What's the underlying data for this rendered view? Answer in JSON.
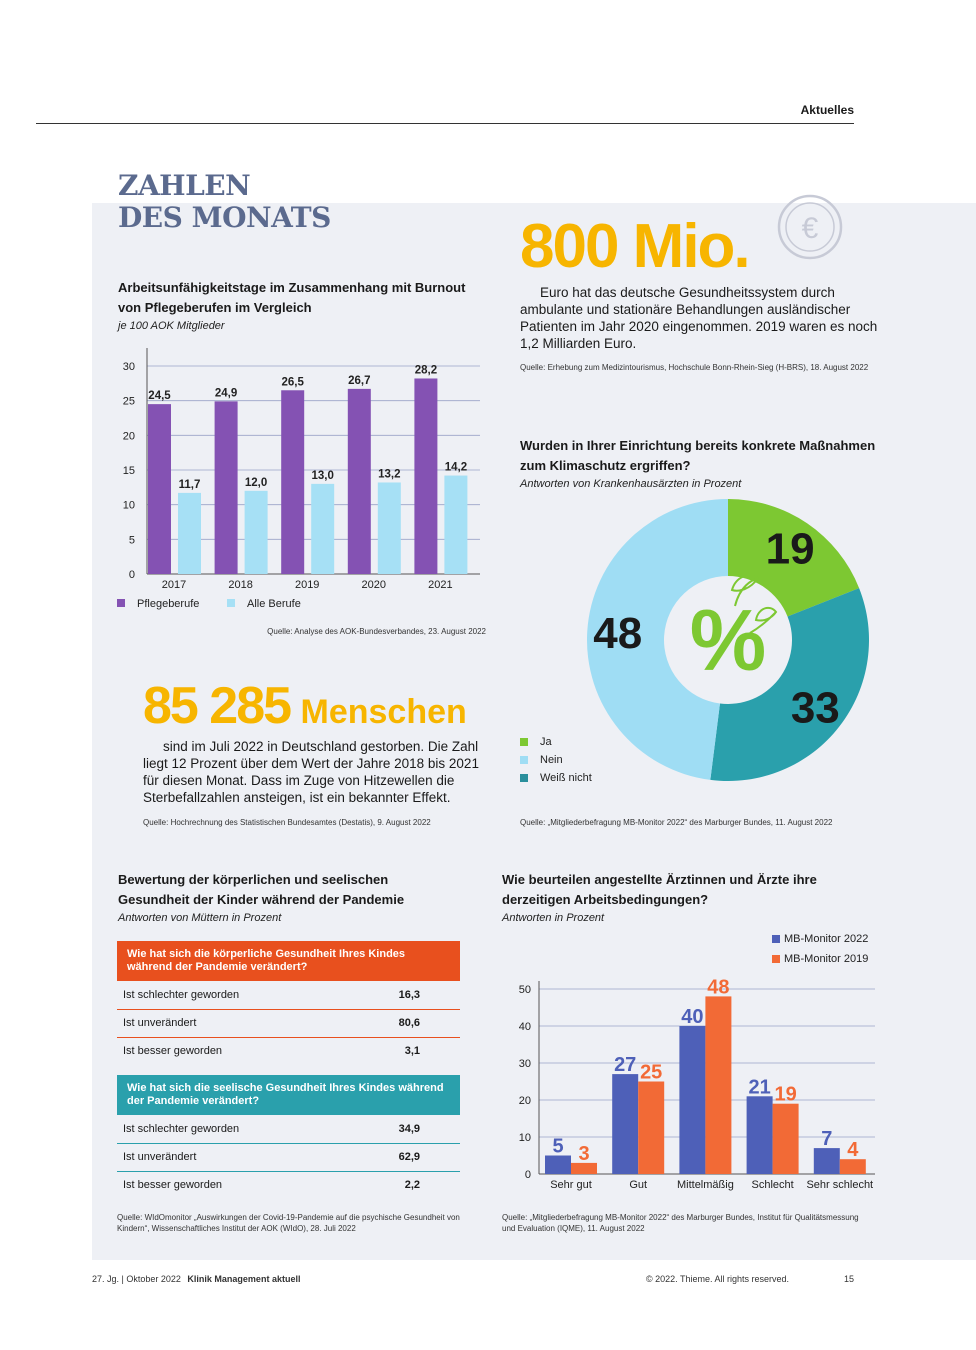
{
  "header": {
    "section": "Aktuelles"
  },
  "title": {
    "line1": "ZAHLEN",
    "line2": "DES MONATS"
  },
  "money": {
    "number": "800 Mio.",
    "icon": "euro-coin-icon",
    "text": "Euro hat das deutsche Gesundheitssystem durch ambulante und stationäre Behandlungen ausländischer Patienten im Jahr 2020 eingenommen. 2019 waren es noch 1,2 Milliarden Euro.",
    "source": "Quelle: Erhebung zum Medizintourismus, Hochschule Bonn-Rhein-Sieg (H-BRS), 18. August 2022"
  },
  "deaths": {
    "number": "85 285",
    "unit": "Menschen",
    "text": "sind im Juli 2022 in Deutschland gestorben. Die Zahl liegt 12 Prozent über dem Wert der Jahre 2018 bis 2021 für diesen Monat. Dass im Zuge von Hitzewellen die Sterbefallzahlen ansteigen, ist ein bekannter Effekt.",
    "source": "Quelle: Hochrechnung des Statistischen Bundesamtes (Destatis), 9. August 2022"
  },
  "table_section": {
    "title": "Bewertung der körperlichen und seelischen Gesundheit der Kinder während der Pandemie",
    "subtitle": "Antworten von Müttern in Prozent",
    "source": "Quelle: WIdOmonitor „Auswirkungen der Covid-19-Pandemie auf die psychische Gesundheit von Kindern“, Wissenschaftliches Institut der AOK (WIdO), 28. Juli 2022",
    "color_body": "#e8501e",
    "color_mind": "#2aa0ac"
  },
  "footer": {
    "left": "27. Jg.  |  Oktober 2022",
    "journal": "Klinik Management aktuell",
    "copyright": "© 2022. Thieme. All rights reserved.",
    "page": "15"
  },
  "chart_data": [
    {
      "type": "bar",
      "title": "Arbeitsunfähigkeitstage im Zusammenhang mit Burnout von Pflegeberufen im Vergleich",
      "subtitle": "je 100 AOK Mitglieder",
      "categories": [
        "2017",
        "2018",
        "2019",
        "2020",
        "2021"
      ],
      "series": [
        {
          "name": "Pflegeberufe",
          "values": [
            24.5,
            24.9,
            26.5,
            26.7,
            28.2
          ],
          "labels": [
            "24,5",
            "24,9",
            "26,5",
            "26,7",
            "28,2"
          ],
          "color": "#8452b3"
        },
        {
          "name": "Alle Berufe",
          "values": [
            11.7,
            12.0,
            13.0,
            13.2,
            14.2
          ],
          "labels": [
            "11,7",
            "12,0",
            "13,0",
            "13,2",
            "14,2"
          ],
          "color": "#a6e0f5"
        }
      ],
      "yticks": [
        "0",
        "5",
        "10",
        "15",
        "20",
        "25",
        "30"
      ],
      "ylim": [
        0,
        30
      ],
      "grid": true,
      "legend": "bottom-left",
      "source": "Quelle: Analyse des AOK-Bundesverbandes, 23. August 2022"
    },
    {
      "type": "pie",
      "title": "Wurden in Ihrer Einrichtung bereits konkrete Maßnahmen zum Klimaschutz ergriffen?",
      "subtitle": "Antworten von Krankenhausärzten in Prozent",
      "center_label": "%",
      "slices": [
        {
          "label": "Ja",
          "value": 19,
          "color": "#7dc832"
        },
        {
          "label": "Weiß nicht",
          "value": 33,
          "color": "#2aa0ac"
        },
        {
          "label": "Nein",
          "value": 48,
          "color": "#9fddf4"
        }
      ],
      "legend": [
        "Ja",
        "Nein",
        "Weiß nicht"
      ],
      "legend_colors": [
        "#7dc832",
        "#9fddf4",
        "#2a8f9c"
      ],
      "source": "Quelle: „Mitgliederbefragung MB-Monitor 2022“ des Marburger Bundes, 11. August 2022"
    },
    {
      "type": "table",
      "groups": [
        {
          "header": "Wie hat sich die körperliche Gesundheit Ihres Kindes während der Pandemie verändert?",
          "rows": [
            {
              "label": "Ist schlechter geworden",
              "value": "16,3"
            },
            {
              "label": "Ist unverändert",
              "value": "80,6"
            },
            {
              "label": "Ist besser geworden",
              "value": "3,1"
            }
          ]
        },
        {
          "header": "Wie hat sich die seelische Gesundheit Ihres Kindes während der Pandemie verändert?",
          "rows": [
            {
              "label": "Ist schlechter geworden",
              "value": "34,9"
            },
            {
              "label": "Ist unverändert",
              "value": "62,9"
            },
            {
              "label": "Ist besser geworden",
              "value": "2,2"
            }
          ]
        }
      ]
    },
    {
      "type": "bar",
      "title": "Wie beurteilen angestellte Ärztinnen und Ärzte ihre derzeitigen Arbeitsbedingungen?",
      "subtitle": "Antworten in Prozent",
      "categories": [
        "Sehr gut",
        "Gut",
        "Mittelmäßig",
        "Schlecht",
        "Sehr schlecht"
      ],
      "series": [
        {
          "name": "MB-Monitor 2022",
          "values": [
            5,
            27,
            40,
            21,
            7
          ],
          "color": "#4e60b8"
        },
        {
          "name": "MB-Monitor 2019",
          "values": [
            3,
            25,
            48,
            19,
            4
          ],
          "color": "#f26a36"
        }
      ],
      "yticks": [
        "0",
        "10",
        "20",
        "30",
        "40",
        "50"
      ],
      "ylim": [
        0,
        50
      ],
      "grid": true,
      "legend": "top-right",
      "source": "Quelle: „Mitgliederbefragung MB-Monitor 2022“ des Marburger Bundes, Institut für Qualitätsmessung und Evaluation (IQME), 11. August 2022"
    }
  ]
}
